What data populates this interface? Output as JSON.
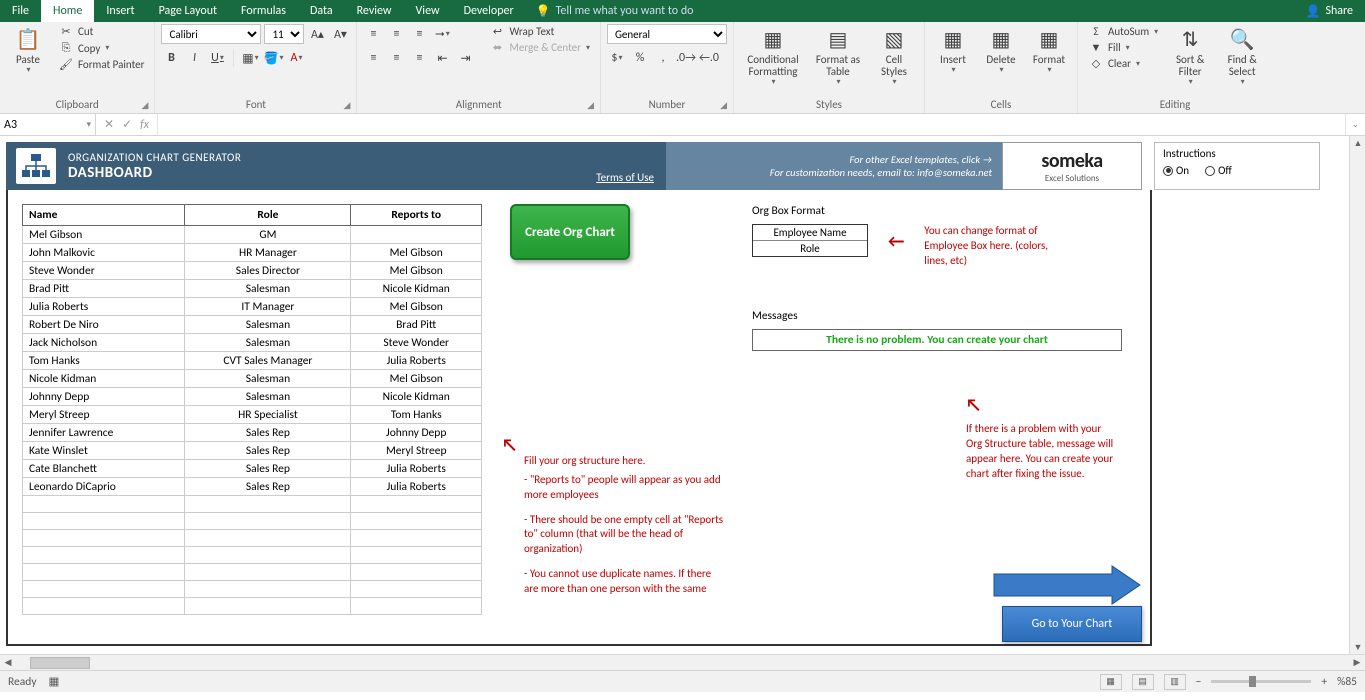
{
  "tabs": {
    "file": "File",
    "home": "Home",
    "insert": "Insert",
    "pageLayout": "Page Layout",
    "formulas": "Formulas",
    "data": "Data",
    "review": "Review",
    "view": "View",
    "developer": "Developer",
    "tell": "Tell me what you want to do",
    "share": "Share"
  },
  "ribbon": {
    "paste": "Paste",
    "cut": "Cut",
    "copy": "Copy",
    "formatPainter": "Format Painter",
    "clipboard": "Clipboard",
    "font": "Font",
    "fontName": "Calibri",
    "fontSize": "11",
    "alignment": "Alignment",
    "wrapText": "Wrap Text",
    "mergeCenter": "Merge & Center",
    "number": "Number",
    "numberFormat": "General",
    "conditional": "Conditional Formatting",
    "formatAs": "Format as Table",
    "cellStyles": "Cell Styles",
    "styles": "Styles",
    "insert": "Insert",
    "delete": "Delete",
    "format": "Format",
    "cells": "Cells",
    "autosum": "AutoSum",
    "fill": "Fill",
    "clear": "Clear",
    "sortFilter": "Sort & Filter",
    "findSelect": "Find & Select",
    "editing": "Editing"
  },
  "namebox": "A3",
  "dashboard": {
    "titleSmall": "ORGANIZATION CHART GENERATOR",
    "titleLarge": "DASHBOARD",
    "terms": "Terms of Use",
    "otherTemplates": "For other Excel templates, click →",
    "customization": "For customization needs, email to: info@someka.net",
    "brand": "someka",
    "brandSub": "Excel Solutions",
    "instructions": "Instructions",
    "on": "On",
    "off": "Off"
  },
  "table": {
    "headers": {
      "name": "Name",
      "role": "Role",
      "reports": "Reports to"
    },
    "rows": [
      {
        "name": "Mel Gibson",
        "role": "GM",
        "reports": ""
      },
      {
        "name": "John Malkovic",
        "role": "HR Manager",
        "reports": "Mel Gibson"
      },
      {
        "name": "Steve Wonder",
        "role": "Sales Director",
        "reports": "Mel Gibson"
      },
      {
        "name": "Brad Pitt",
        "role": "Salesman",
        "reports": "Nicole Kidman"
      },
      {
        "name": "Julia Roberts",
        "role": "IT Manager",
        "reports": "Mel Gibson"
      },
      {
        "name": "Robert De Niro",
        "role": "Salesman",
        "reports": "Brad Pitt"
      },
      {
        "name": "Jack Nicholson",
        "role": "Salesman",
        "reports": "Steve Wonder"
      },
      {
        "name": "Tom Hanks",
        "role": "CVT Sales Manager",
        "reports": "Julia Roberts"
      },
      {
        "name": "Nicole Kidman",
        "role": "Salesman",
        "reports": "Mel Gibson"
      },
      {
        "name": "Johnny Depp",
        "role": "Salesman",
        "reports": "Nicole Kidman"
      },
      {
        "name": "Meryl Streep",
        "role": "HR Specialist",
        "reports": "Tom Hanks"
      },
      {
        "name": "Jennifer Lawrence",
        "role": "Sales Rep",
        "reports": "Johnny Depp"
      },
      {
        "name": "Kate Winslet",
        "role": "Sales Rep",
        "reports": "Meryl Streep"
      },
      {
        "name": "Cate Blanchett",
        "role": "Sales Rep",
        "reports": "Julia Roberts"
      },
      {
        "name": "Leonardo DiCaprio",
        "role": "Sales Rep",
        "reports": "Julia Roberts"
      }
    ],
    "emptyRows": 7
  },
  "createBtn": "Create Org Chart",
  "orgBox": {
    "label": "Org Box Format",
    "line1": "Employee Name",
    "line2": "Role"
  },
  "orgBoxHint": "You can change format of Employee Box here. (colors, lines, etc)",
  "messages": {
    "label": "Messages",
    "text": "There is no problem. You can create your chart"
  },
  "msgHint": "If there is a problem with your Org Structure table, message will appear here. You can create your chart after fixing the issue.",
  "fillHint": {
    "l1": "Fill your org structure here.",
    "l2": "- \"Reports to\" people will appear as you add more employees",
    "l3": "- There should be one empty cell at \"Reports to\" column (that will be the head of organization)",
    "l4": "- You cannot use duplicate names. If there are more than one person with the same"
  },
  "gotoBtn": "Go to Your Chart",
  "status": {
    "ready": "Ready",
    "zoom": "%85"
  },
  "colors": {
    "ribbonGreen": "#186a40",
    "dashDark": "#3c5d78",
    "dashLight": "#6585a0",
    "btnGreen": "#1f9a2e",
    "hintRed": "#c00000",
    "msgGreen": "#18a818",
    "gotoBlue": "#2a6cb8"
  }
}
